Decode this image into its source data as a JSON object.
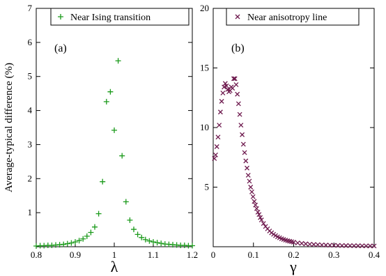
{
  "chart_data": [
    {
      "type": "scatter",
      "panel_label": "(a)",
      "xlabel": "λ",
      "ylabel": "Average-typical difference (%)",
      "xlim": [
        0.8,
        1.2
      ],
      "ylim": [
        0,
        7
      ],
      "xticks": [
        "0.8",
        "0.9",
        "1",
        "1.1",
        "1.2"
      ],
      "yticks": [
        "1",
        "2",
        "3",
        "4",
        "5",
        "6",
        "7"
      ],
      "grid": false,
      "legend_position": "top-right",
      "series": [
        {
          "name": "Near Ising transition",
          "marker": "plus",
          "color": "#1a9a1a",
          "x": [
            0.8,
            0.81,
            0.82,
            0.83,
            0.84,
            0.85,
            0.86,
            0.87,
            0.88,
            0.89,
            0.9,
            0.91,
            0.92,
            0.93,
            0.94,
            0.95,
            0.96,
            0.97,
            0.98,
            0.99,
            1.0,
            1.01,
            1.02,
            1.03,
            1.04,
            1.05,
            1.06,
            1.07,
            1.08,
            1.09,
            1.1,
            1.11,
            1.12,
            1.13,
            1.14,
            1.15,
            1.16,
            1.17,
            1.18,
            1.19,
            1.2
          ],
          "y": [
            0.02,
            0.03,
            0.03,
            0.04,
            0.04,
            0.05,
            0.06,
            0.07,
            0.09,
            0.11,
            0.14,
            0.18,
            0.23,
            0.31,
            0.42,
            0.58,
            0.97,
            1.91,
            4.26,
            4.55,
            3.42,
            5.46,
            2.67,
            1.32,
            0.78,
            0.51,
            0.36,
            0.27,
            0.21,
            0.17,
            0.14,
            0.12,
            0.1,
            0.08,
            0.07,
            0.06,
            0.05,
            0.04,
            0.04,
            0.03,
            0.03
          ]
        }
      ]
    },
    {
      "type": "scatter",
      "panel_label": "(b)",
      "xlabel": "γ",
      "ylabel": "",
      "xlim": [
        0,
        0.4
      ],
      "ylim": [
        0,
        20
      ],
      "xticks": [
        "0",
        "0.1",
        "0.2",
        "0.3",
        "0.4"
      ],
      "yticks": [
        "5",
        "10",
        "15",
        "20"
      ],
      "grid": false,
      "legend_position": "top-right",
      "series": [
        {
          "name": "Near anisotropy line",
          "marker": "cross",
          "color": "#6e1a4e",
          "x": [
            0.003,
            0.006,
            0.009,
            0.012,
            0.015,
            0.018,
            0.021,
            0.024,
            0.027,
            0.03,
            0.033,
            0.036,
            0.039,
            0.042,
            0.045,
            0.048,
            0.051,
            0.054,
            0.057,
            0.06,
            0.063,
            0.066,
            0.069,
            0.072,
            0.075,
            0.078,
            0.081,
            0.084,
            0.087,
            0.09,
            0.093,
            0.096,
            0.099,
            0.102,
            0.105,
            0.108,
            0.111,
            0.114,
            0.117,
            0.12,
            0.125,
            0.13,
            0.135,
            0.14,
            0.145,
            0.15,
            0.155,
            0.16,
            0.165,
            0.17,
            0.175,
            0.18,
            0.185,
            0.19,
            0.195,
            0.2,
            0.21,
            0.22,
            0.23,
            0.24,
            0.25,
            0.26,
            0.27,
            0.28,
            0.29,
            0.3,
            0.31,
            0.32,
            0.33,
            0.34,
            0.35,
            0.36,
            0.37,
            0.38,
            0.39,
            0.4
          ],
          "y": [
            7.4,
            7.7,
            8.4,
            9.2,
            10.2,
            11.3,
            12.2,
            12.9,
            13.4,
            13.7,
            13.5,
            13.2,
            13.0,
            13.1,
            13.4,
            13.3,
            14.1,
            14.1,
            13.6,
            12.8,
            12.0,
            11.1,
            10.2,
            9.4,
            8.6,
            7.9,
            7.2,
            6.6,
            6.0,
            5.5,
            5.0,
            4.6,
            4.2,
            3.8,
            3.5,
            3.2,
            2.9,
            2.7,
            2.45,
            2.25,
            1.95,
            1.7,
            1.5,
            1.32,
            1.17,
            1.04,
            0.93,
            0.83,
            0.75,
            0.67,
            0.61,
            0.55,
            0.5,
            0.46,
            0.42,
            0.38,
            0.32,
            0.28,
            0.24,
            0.21,
            0.19,
            0.17,
            0.15,
            0.14,
            0.13,
            0.12,
            0.11,
            0.1,
            0.095,
            0.09,
            0.085,
            0.08,
            0.075,
            0.07,
            0.065,
            0.06
          ]
        }
      ]
    }
  ]
}
